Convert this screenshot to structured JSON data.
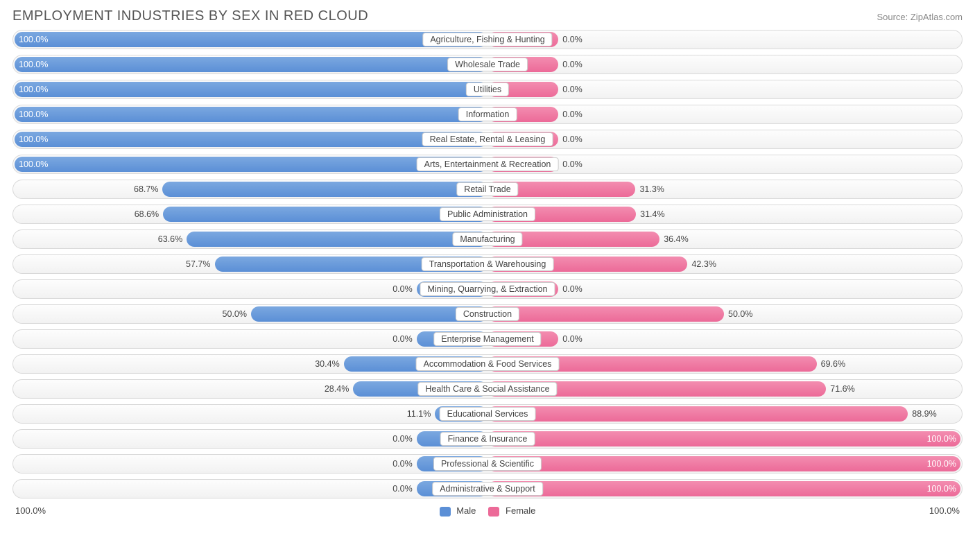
{
  "title": "EMPLOYMENT INDUSTRIES BY SEX IN RED CLOUD",
  "source": "Source: ZipAtlas.com",
  "colors": {
    "male": "#5b8fd6",
    "female": "#ec6a98",
    "row_border": "#d9d9d9",
    "text": "#444444",
    "text_light": "#888888",
    "background": "#ffffff"
  },
  "axis": {
    "left_label": "100.0%",
    "right_label": "100.0%"
  },
  "legend": {
    "male_label": "Male",
    "female_label": "Female"
  },
  "default_bar_pct": 15,
  "rows": [
    {
      "label": "Agriculture, Fishing & Hunting",
      "male": 100.0,
      "female": 0.0
    },
    {
      "label": "Wholesale Trade",
      "male": 100.0,
      "female": 0.0
    },
    {
      "label": "Utilities",
      "male": 100.0,
      "female": 0.0
    },
    {
      "label": "Information",
      "male": 100.0,
      "female": 0.0
    },
    {
      "label": "Real Estate, Rental & Leasing",
      "male": 100.0,
      "female": 0.0
    },
    {
      "label": "Arts, Entertainment & Recreation",
      "male": 100.0,
      "female": 0.0
    },
    {
      "label": "Retail Trade",
      "male": 68.7,
      "female": 31.3
    },
    {
      "label": "Public Administration",
      "male": 68.6,
      "female": 31.4
    },
    {
      "label": "Manufacturing",
      "male": 63.6,
      "female": 36.4
    },
    {
      "label": "Transportation & Warehousing",
      "male": 57.7,
      "female": 42.3
    },
    {
      "label": "Mining, Quarrying, & Extraction",
      "male": 0.0,
      "female": 0.0
    },
    {
      "label": "Construction",
      "male": 50.0,
      "female": 50.0
    },
    {
      "label": "Enterprise Management",
      "male": 0.0,
      "female": 0.0
    },
    {
      "label": "Accommodation & Food Services",
      "male": 30.4,
      "female": 69.6
    },
    {
      "label": "Health Care & Social Assistance",
      "male": 28.4,
      "female": 71.6
    },
    {
      "label": "Educational Services",
      "male": 11.1,
      "female": 88.9
    },
    {
      "label": "Finance & Insurance",
      "male": 0.0,
      "female": 100.0
    },
    {
      "label": "Professional & Scientific",
      "male": 0.0,
      "female": 100.0
    },
    {
      "label": "Administrative & Support",
      "male": 0.0,
      "female": 100.0
    }
  ]
}
